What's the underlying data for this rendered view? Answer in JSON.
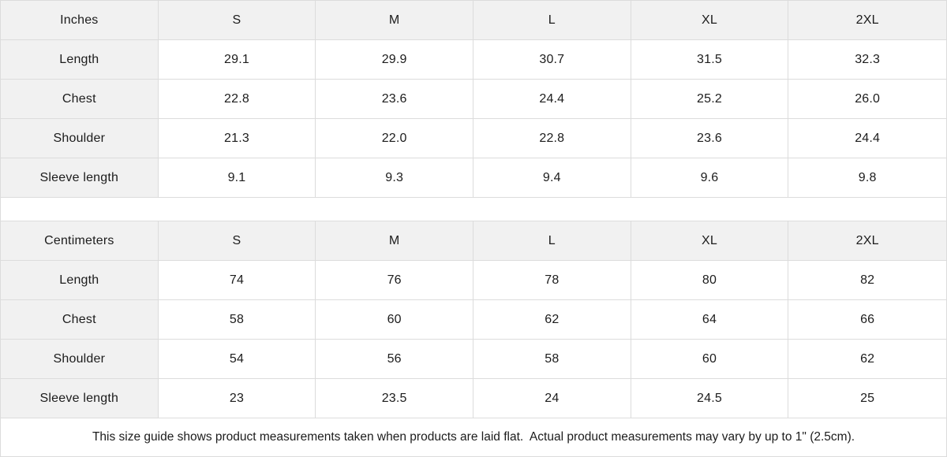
{
  "tables": [
    {
      "unit_label": "Inches",
      "sizes": [
        "S",
        "M",
        "L",
        "XL",
        "2XL"
      ],
      "rows": [
        {
          "label": "Length",
          "values": [
            "29.1",
            "29.9",
            "30.7",
            "31.5",
            "32.3"
          ]
        },
        {
          "label": "Chest",
          "values": [
            "22.8",
            "23.6",
            "24.4",
            "25.2",
            "26.0"
          ]
        },
        {
          "label": "Shoulder",
          "values": [
            "21.3",
            "22.0",
            "22.8",
            "23.6",
            "24.4"
          ]
        },
        {
          "label": "Sleeve length",
          "values": [
            "9.1",
            "9.3",
            "9.4",
            "9.6",
            "9.8"
          ]
        }
      ]
    },
    {
      "unit_label": "Centimeters",
      "sizes": [
        "S",
        "M",
        "L",
        "XL",
        "2XL"
      ],
      "rows": [
        {
          "label": "Length",
          "values": [
            "74",
            "76",
            "78",
            "80",
            "82"
          ]
        },
        {
          "label": "Chest",
          "values": [
            "58",
            "60",
            "62",
            "64",
            "66"
          ]
        },
        {
          "label": "Shoulder",
          "values": [
            "54",
            "56",
            "58",
            "60",
            "62"
          ]
        },
        {
          "label": "Sleeve length",
          "values": [
            "23",
            "23.5",
            "24",
            "24.5",
            "25"
          ]
        }
      ]
    }
  ],
  "footer": {
    "note": "This size guide shows product measurements taken when products are laid flat.  Actual product measurements may vary by up to 1\" (2.5cm)."
  },
  "colors": {
    "header_bg": "#f1f1f1",
    "border": "#dcdcdc",
    "text": "#1c1c1c"
  }
}
